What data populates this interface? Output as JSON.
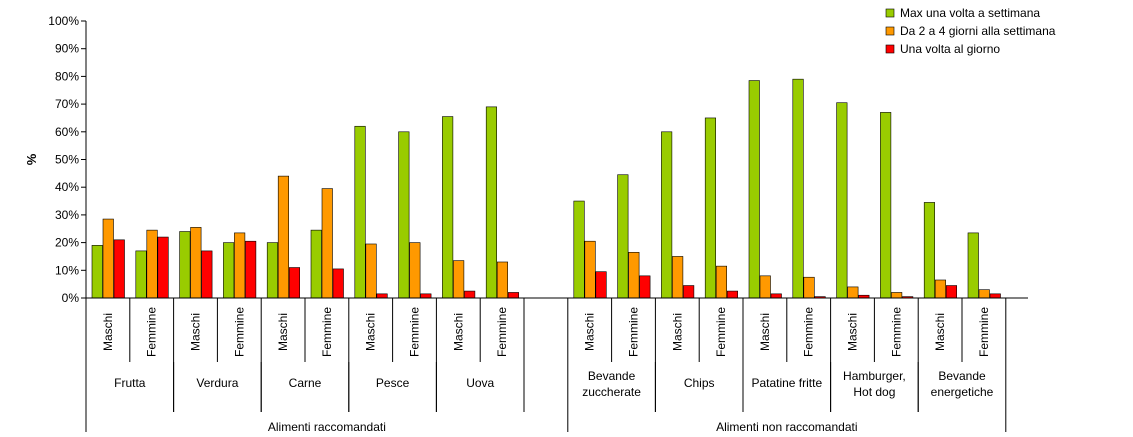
{
  "chart_data": {
    "type": "bar",
    "ylabel": "%",
    "ylim": [
      0,
      100
    ],
    "yticks": [
      "0%",
      "10%",
      "20%",
      "30%",
      "40%",
      "50%",
      "60%",
      "70%",
      "80%",
      "90%",
      "100%"
    ],
    "legend_position": "top-right",
    "series": [
      {
        "name": "Max una volta a settimana",
        "color": "#99CC00"
      },
      {
        "name": "Da 2 a 4 giorni alla settimana",
        "color": "#FF9900"
      },
      {
        "name": "Una volta al giorno",
        "color": "#FF0000"
      }
    ],
    "groups": [
      {
        "label": "Alimenti raccomandati",
        "categories": [
          {
            "label_lines": [
              "Frutta"
            ],
            "bars": [
              {
                "sex": "Maschi",
                "values": [
                  19,
                  28.5,
                  21
                ]
              },
              {
                "sex": "Femmine",
                "values": [
                  17,
                  24.5,
                  22
                ]
              }
            ]
          },
          {
            "label_lines": [
              "Verdura"
            ],
            "bars": [
              {
                "sex": "Maschi",
                "values": [
                  24,
                  25.5,
                  17
                ]
              },
              {
                "sex": "Femmine",
                "values": [
                  20,
                  23.5,
                  20.5
                ]
              }
            ]
          },
          {
            "label_lines": [
              "Carne"
            ],
            "bars": [
              {
                "sex": "Maschi",
                "values": [
                  20,
                  44,
                  11
                ]
              },
              {
                "sex": "Femmine",
                "values": [
                  24.5,
                  39.5,
                  10.5
                ]
              }
            ]
          },
          {
            "label_lines": [
              "Pesce"
            ],
            "bars": [
              {
                "sex": "Maschi",
                "values": [
                  62,
                  19.5,
                  1.5
                ]
              },
              {
                "sex": "Femmine",
                "values": [
                  60,
                  20,
                  1.5
                ]
              }
            ]
          },
          {
            "label_lines": [
              "Uova"
            ],
            "bars": [
              {
                "sex": "Maschi",
                "values": [
                  65.5,
                  13.5,
                  2.5
                ]
              },
              {
                "sex": "Femmine",
                "values": [
                  69,
                  13,
                  2
                ]
              }
            ]
          }
        ]
      },
      {
        "label": "Alimenti non raccomandati",
        "categories": [
          {
            "label_lines": [
              "Bevande",
              "zuccherate"
            ],
            "bars": [
              {
                "sex": "Maschi",
                "values": [
                  35,
                  20.5,
                  9.5
                ]
              },
              {
                "sex": "Femmine",
                "values": [
                  44.5,
                  16.5,
                  8
                ]
              }
            ]
          },
          {
            "label_lines": [
              "Chips"
            ],
            "bars": [
              {
                "sex": "Maschi",
                "values": [
                  60,
                  15,
                  4.5
                ]
              },
              {
                "sex": "Femmine",
                "values": [
                  65,
                  11.5,
                  2.5
                ]
              }
            ]
          },
          {
            "label_lines": [
              "Patatine fritte"
            ],
            "bars": [
              {
                "sex": "Maschi",
                "values": [
                  78.5,
                  8,
                  1.5
                ]
              },
              {
                "sex": "Femmine",
                "values": [
                  79,
                  7.5,
                  0.5
                ]
              }
            ]
          },
          {
            "label_lines": [
              "Hamburger,",
              "Hot dog"
            ],
            "bars": [
              {
                "sex": "Maschi",
                "values": [
                  70.5,
                  4,
                  1
                ]
              },
              {
                "sex": "Femmine",
                "values": [
                  67,
                  2,
                  0.5
                ]
              }
            ]
          },
          {
            "label_lines": [
              "Bevande",
              "energetiche"
            ],
            "bars": [
              {
                "sex": "Maschi",
                "values": [
                  34.5,
                  6.5,
                  4.5
                ]
              },
              {
                "sex": "Femmine",
                "values": [
                  23.5,
                  3,
                  1.5
                ]
              }
            ]
          }
        ]
      }
    ]
  }
}
